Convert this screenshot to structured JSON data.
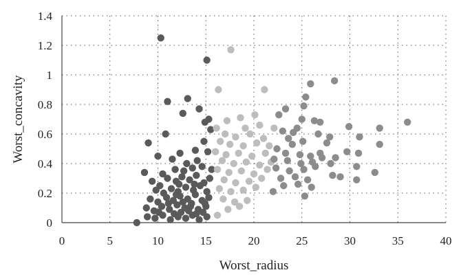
{
  "chart_data": {
    "type": "scatter",
    "xlabel": "Worst_radius",
    "ylabel": "Worst_concavity",
    "xlim": [
      0,
      40
    ],
    "ylim": [
      0,
      1.4
    ],
    "xticks": [
      "0",
      "5",
      "10",
      "15",
      "20",
      "25",
      "30",
      "35",
      "40"
    ],
    "yticks": [
      "0",
      "0.2",
      "0.4",
      "0.6",
      "0.8",
      "1",
      "1.2",
      "1.4"
    ],
    "grid": "dotted",
    "colors": {
      "dark": "#5a5a5a",
      "light": "#bdbdbd",
      "mid": "#8c8c8c"
    },
    "series": [
      {
        "color": "#5a5a5a",
        "points": [
          [
            10.3,
            1.25
          ],
          [
            15.1,
            1.1
          ],
          [
            13.1,
            0.84
          ],
          [
            11.0,
            0.82
          ],
          [
            14.3,
            0.77
          ],
          [
            12.6,
            0.74
          ],
          [
            15.3,
            0.7
          ],
          [
            14.9,
            0.68
          ],
          [
            10.8,
            0.6
          ],
          [
            15.5,
            0.63
          ],
          [
            9.0,
            0.54
          ],
          [
            14.8,
            0.55
          ],
          [
            10.0,
            0.45
          ],
          [
            12.3,
            0.47
          ],
          [
            13.9,
            0.49
          ],
          [
            15.2,
            0.48
          ],
          [
            11.5,
            0.43
          ],
          [
            13.0,
            0.4
          ],
          [
            14.1,
            0.42
          ],
          [
            8.6,
            0.34
          ],
          [
            10.5,
            0.33
          ],
          [
            11.8,
            0.36
          ],
          [
            12.7,
            0.35
          ],
          [
            13.6,
            0.37
          ],
          [
            14.6,
            0.38
          ],
          [
            15.6,
            0.36
          ],
          [
            9.4,
            0.28
          ],
          [
            10.2,
            0.25
          ],
          [
            11.0,
            0.3
          ],
          [
            11.9,
            0.28
          ],
          [
            12.5,
            0.31
          ],
          [
            13.3,
            0.29
          ],
          [
            14.0,
            0.32
          ],
          [
            14.8,
            0.27
          ],
          [
            15.4,
            0.3
          ],
          [
            9.8,
            0.22
          ],
          [
            10.6,
            0.2
          ],
          [
            11.4,
            0.23
          ],
          [
            12.1,
            0.21
          ],
          [
            12.9,
            0.24
          ],
          [
            13.7,
            0.22
          ],
          [
            14.4,
            0.25
          ],
          [
            15.1,
            0.21
          ],
          [
            9.2,
            0.16
          ],
          [
            10.0,
            0.14
          ],
          [
            10.9,
            0.17
          ],
          [
            11.6,
            0.15
          ],
          [
            12.3,
            0.18
          ],
          [
            13.1,
            0.16
          ],
          [
            13.9,
            0.19
          ],
          [
            14.6,
            0.15
          ],
          [
            15.3,
            0.17
          ],
          [
            8.8,
            0.1
          ],
          [
            9.6,
            0.08
          ],
          [
            10.4,
            0.11
          ],
          [
            11.2,
            0.09
          ],
          [
            12.0,
            0.12
          ],
          [
            12.8,
            0.1
          ],
          [
            13.5,
            0.13
          ],
          [
            14.2,
            0.09
          ],
          [
            15.0,
            0.11
          ],
          [
            7.8,
            0.0
          ],
          [
            8.9,
            0.04
          ],
          [
            9.7,
            0.03
          ],
          [
            10.5,
            0.05
          ],
          [
            11.3,
            0.02
          ],
          [
            12.1,
            0.04
          ],
          [
            12.9,
            0.03
          ],
          [
            13.6,
            0.05
          ],
          [
            14.3,
            0.02
          ],
          [
            15.1,
            0.04
          ],
          [
            11.7,
            0.06
          ],
          [
            12.4,
            0.07
          ],
          [
            13.2,
            0.08
          ],
          [
            14.0,
            0.06
          ],
          [
            14.7,
            0.07
          ],
          [
            10.1,
            0.07
          ],
          [
            11.1,
            0.13
          ],
          [
            12.6,
            0.14
          ],
          [
            13.4,
            0.11
          ],
          [
            14.9,
            0.13
          ],
          [
            11.9,
            0.19
          ],
          [
            13.8,
            0.26
          ],
          [
            12.2,
            0.26
          ]
        ]
      },
      {
        "color": "#bdbdbd",
        "points": [
          [
            17.6,
            1.17
          ],
          [
            16.3,
            0.9
          ],
          [
            21.1,
            0.9
          ],
          [
            20.1,
            0.73
          ],
          [
            18.6,
            0.71
          ],
          [
            17.2,
            0.69
          ],
          [
            16.1,
            0.64
          ],
          [
            19.1,
            0.64
          ],
          [
            20.6,
            0.66
          ],
          [
            22.1,
            0.64
          ],
          [
            17.0,
            0.6
          ],
          [
            18.1,
            0.58
          ],
          [
            19.6,
            0.6
          ],
          [
            21.0,
            0.57
          ],
          [
            16.5,
            0.55
          ],
          [
            17.5,
            0.53
          ],
          [
            18.9,
            0.52
          ],
          [
            20.3,
            0.54
          ],
          [
            21.6,
            0.52
          ],
          [
            16.0,
            0.48
          ],
          [
            17.1,
            0.46
          ],
          [
            18.4,
            0.47
          ],
          [
            19.8,
            0.45
          ],
          [
            21.2,
            0.47
          ],
          [
            16.7,
            0.42
          ],
          [
            17.9,
            0.4
          ],
          [
            19.2,
            0.41
          ],
          [
            20.6,
            0.39
          ],
          [
            21.8,
            0.41
          ],
          [
            16.2,
            0.36
          ],
          [
            17.4,
            0.34
          ],
          [
            18.7,
            0.35
          ],
          [
            20.0,
            0.33
          ],
          [
            21.4,
            0.36
          ],
          [
            16.9,
            0.29
          ],
          [
            18.1,
            0.27
          ],
          [
            19.5,
            0.28
          ],
          [
            20.8,
            0.3
          ],
          [
            16.4,
            0.23
          ],
          [
            17.6,
            0.21
          ],
          [
            18.9,
            0.22
          ],
          [
            20.2,
            0.24
          ],
          [
            16.8,
            0.16
          ],
          [
            18.0,
            0.14
          ],
          [
            19.3,
            0.15
          ],
          [
            17.3,
            0.09
          ],
          [
            18.5,
            0.11
          ],
          [
            16.2,
            0.05
          ]
        ]
      },
      {
        "color": "#8c8c8c",
        "points": [
          [
            28.4,
            0.96
          ],
          [
            25.9,
            0.94
          ],
          [
            25.4,
            0.85
          ],
          [
            25.2,
            0.79
          ],
          [
            23.3,
            0.77
          ],
          [
            22.6,
            0.73
          ],
          [
            25.0,
            0.7
          ],
          [
            26.3,
            0.69
          ],
          [
            26.9,
            0.68
          ],
          [
            24.5,
            0.64
          ],
          [
            29.9,
            0.65
          ],
          [
            33.1,
            0.64
          ],
          [
            36.0,
            0.68
          ],
          [
            23.0,
            0.62
          ],
          [
            24.1,
            0.61
          ],
          [
            26.7,
            0.6
          ],
          [
            27.9,
            0.58
          ],
          [
            31.0,
            0.58
          ],
          [
            23.6,
            0.57
          ],
          [
            25.1,
            0.55
          ],
          [
            24.0,
            0.53
          ],
          [
            27.6,
            0.54
          ],
          [
            29.7,
            0.48
          ],
          [
            33.1,
            0.53
          ],
          [
            22.4,
            0.5
          ],
          [
            23.3,
            0.47
          ],
          [
            24.8,
            0.46
          ],
          [
            25.9,
            0.45
          ],
          [
            26.9,
            0.47
          ],
          [
            30.9,
            0.47
          ],
          [
            22.1,
            0.43
          ],
          [
            23.5,
            0.42
          ],
          [
            24.9,
            0.4
          ],
          [
            26.1,
            0.41
          ],
          [
            28.0,
            0.4
          ],
          [
            30.7,
            0.38
          ],
          [
            22.3,
            0.37
          ],
          [
            23.7,
            0.35
          ],
          [
            25.2,
            0.36
          ],
          [
            26.4,
            0.38
          ],
          [
            32.6,
            0.34
          ],
          [
            22.8,
            0.3
          ],
          [
            24.3,
            0.31
          ],
          [
            25.6,
            0.29
          ],
          [
            28.2,
            0.32
          ],
          [
            29.0,
            0.31
          ],
          [
            30.7,
            0.29
          ],
          [
            23.1,
            0.25
          ],
          [
            24.6,
            0.26
          ],
          [
            26.0,
            0.24
          ],
          [
            22.0,
            0.21
          ],
          [
            25.3,
            0.18
          ],
          [
            27.1,
            0.44
          ],
          [
            28.5,
            0.44
          ]
        ]
      }
    ]
  }
}
